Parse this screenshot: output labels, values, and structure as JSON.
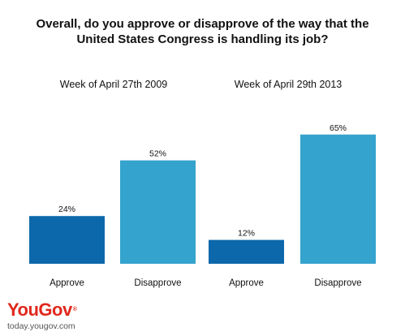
{
  "header": {
    "title_line1": "Overall, do you approve or disapprove of the way that the",
    "title_line2": "United States Congress is handling its job?"
  },
  "branding": {
    "logo_text": "YouGov",
    "logo_mark": "®",
    "site": "today.yougov.com",
    "logo_color": "#e0281c"
  },
  "chart_data": {
    "type": "bar",
    "title": "Overall, do you approve or disapprove of the way that the United States Congress is handling its job?",
    "groups": [
      "Week of April 27th 2009",
      "Week of April 29th 2013"
    ],
    "categories": [
      "Approve",
      "Disapprove"
    ],
    "series": [
      {
        "group": "Week of April 27th 2009",
        "values": [
          24,
          52
        ],
        "value_labels": [
          "24%",
          "52%"
        ]
      },
      {
        "group": "Week of April 29th 2013",
        "values": [
          12,
          65
        ],
        "value_labels": [
          "12%",
          "65%"
        ]
      }
    ],
    "colors": {
      "Approve": "#0c68aa",
      "Disapprove": "#34a3cd"
    },
    "ylim": [
      0,
      70
    ],
    "grid": false,
    "xlabel": "",
    "ylabel": ""
  }
}
